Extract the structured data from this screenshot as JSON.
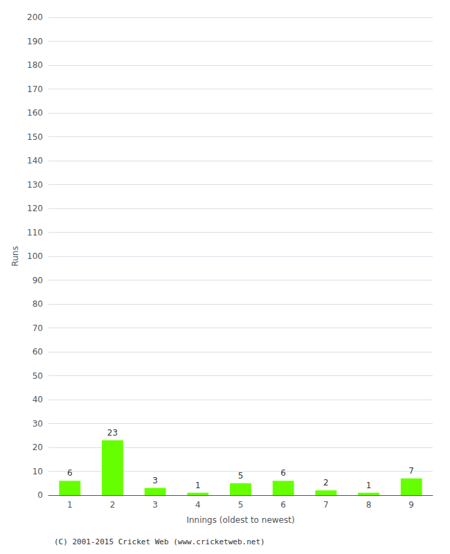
{
  "chart_data": {
    "type": "bar",
    "xlabel": "Innings (oldest to newest)",
    "ylabel": "Runs",
    "categories": [
      "1",
      "2",
      "3",
      "4",
      "5",
      "6",
      "7",
      "8",
      "9"
    ],
    "values": [
      6,
      23,
      3,
      1,
      5,
      6,
      2,
      1,
      7
    ],
    "color": "#66ff00",
    "ylim": [
      0,
      200
    ],
    "yticks": [
      0,
      10,
      20,
      30,
      40,
      50,
      60,
      70,
      80,
      90,
      100,
      110,
      120,
      130,
      140,
      150,
      160,
      170,
      180,
      190,
      200
    ],
    "grid": true,
    "data_labels": true,
    "annotations": [
      "(C) 2001-2015 Cricket Web (www.cricketweb.net)"
    ]
  }
}
